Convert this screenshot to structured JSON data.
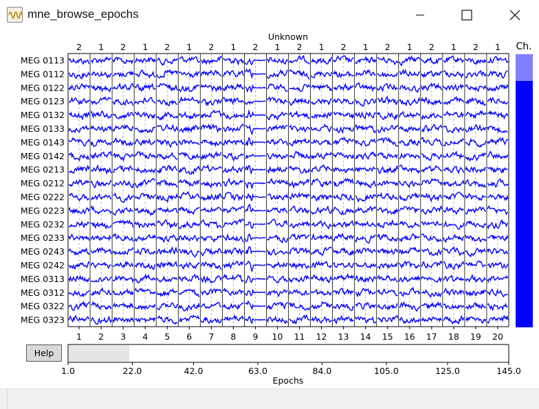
{
  "window": {
    "title": "mne_browse_epochs",
    "icon": "waveform-app-icon",
    "controls": [
      "minimize-icon",
      "maximize-icon",
      "close-icon"
    ]
  },
  "plot": {
    "header_label": "Unknown",
    "event_ids": [
      "2",
      "1",
      "2",
      "1",
      "2",
      "1",
      "2",
      "1",
      "2",
      "1",
      "2",
      "1",
      "2",
      "1",
      "2",
      "1",
      "2",
      "1",
      "2",
      "1"
    ],
    "channels": [
      "MEG 0113",
      "MEG 0112",
      "MEG 0122",
      "MEG 0123",
      "MEG 0132",
      "MEG 0133",
      "MEG 0143",
      "MEG 0142",
      "MEG 0213",
      "MEG 0212",
      "MEG 0222",
      "MEG 0223",
      "MEG 0232",
      "MEG 0233",
      "MEG 0243",
      "MEG 0242",
      "MEG 0313",
      "MEG 0312",
      "MEG 0322",
      "MEG 0323"
    ],
    "epoch_numbers": [
      "1",
      "2",
      "3",
      "4",
      "5",
      "6",
      "7",
      "8",
      "9",
      "10",
      "11",
      "12",
      "13",
      "14",
      "15",
      "16",
      "17",
      "18",
      "19",
      "20"
    ],
    "trace_color": "#0000ff",
    "bad_epoch": "9"
  },
  "channel_scroll": {
    "label": "Ch.",
    "color": "#0000ff",
    "highlight_color": "#8080ff"
  },
  "epoch_scroll": {
    "ticks": [
      "1.0",
      "22.0",
      "42.0",
      "63.0",
      "84.0",
      "105.0",
      "125.0",
      "145.0"
    ],
    "xlabel": "Epochs"
  },
  "help_button": {
    "label": "Help"
  }
}
